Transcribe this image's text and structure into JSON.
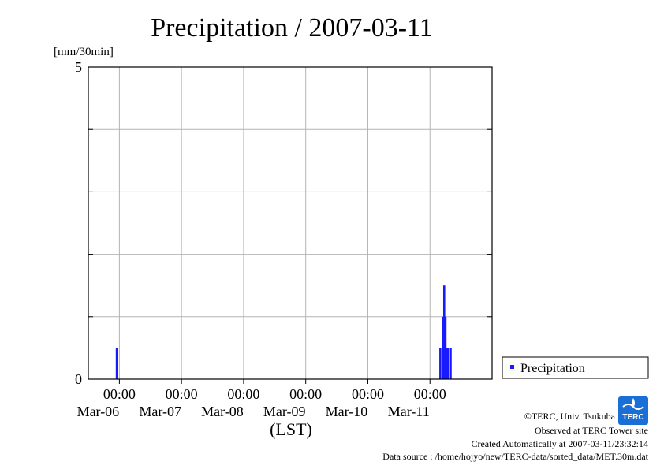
{
  "title": "Precipitation / 2007-03-11",
  "y_unit_label": "[mm/30min]",
  "x_axis_label": "(LST)",
  "legend_label": "Precipitation",
  "colors": {
    "series": "#1a1aff",
    "grid": "#b4b4b4",
    "frame": "#000000"
  },
  "logo": {
    "text": "TERC",
    "color": "#1a6fd6"
  },
  "footer": {
    "copyright": "©TERC, Univ. Tsukuba",
    "observed": "Observed at TERC Tower site",
    "created": "Created Automatically at 2007-03-11/23:32:14",
    "source": "Data source : /home/hojyo/new/TERC-data/sorted_data/MET.30m.dat"
  },
  "chart_data": {
    "type": "bar",
    "title": "Precipitation / 2007-03-11",
    "ylabel": "[mm/30min]",
    "xlabel": "(LST)",
    "ylim": [
      0,
      5
    ],
    "xlim": [
      "2007-03-05 12:00",
      "2007-03-11 24:00"
    ],
    "y_ticks": [
      0,
      5
    ],
    "y_tick_labels": [
      "0",
      "5"
    ],
    "x_ticks": [
      {
        "time": "2007-03-06 00:00",
        "label_time": "00:00",
        "label_date": "Mar-06"
      },
      {
        "time": "2007-03-07 00:00",
        "label_time": "00:00",
        "label_date": "Mar-07"
      },
      {
        "time": "2007-03-08 00:00",
        "label_time": "00:00",
        "label_date": "Mar-08"
      },
      {
        "time": "2007-03-09 00:00",
        "label_time": "00:00",
        "label_date": "Mar-09"
      },
      {
        "time": "2007-03-10 00:00",
        "label_time": "00:00",
        "label_date": "Mar-10"
      },
      {
        "time": "2007-03-11 00:00",
        "label_time": "00:00",
        "label_date": "Mar-11"
      }
    ],
    "grid": true,
    "legend_position": "right-bottom, outside plot",
    "series": [
      {
        "name": "Precipitation",
        "color": "#1a1aff",
        "points": [
          {
            "t": "2007-03-05 23:00",
            "v": 0.5
          },
          {
            "t": "2007-03-11 04:00",
            "v": 0.5
          },
          {
            "t": "2007-03-11 05:00",
            "v": 1.0
          },
          {
            "t": "2007-03-11 05:30",
            "v": 1.5
          },
          {
            "t": "2007-03-11 06:00",
            "v": 1.0
          },
          {
            "t": "2007-03-11 06:30",
            "v": 0.5
          },
          {
            "t": "2007-03-11 07:00",
            "v": 0.5
          },
          {
            "t": "2007-03-11 08:00",
            "v": 0.5
          }
        ]
      }
    ]
  }
}
